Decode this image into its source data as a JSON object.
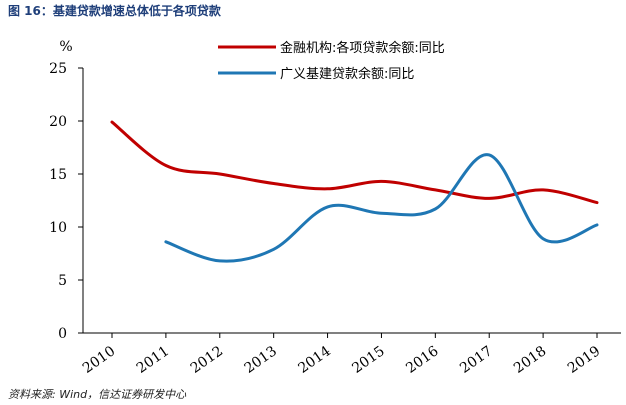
{
  "figure": {
    "title": "图 16：基建贷款增速总体低于各项贷款",
    "source": "资料来源: Wind，信达证券研发中心"
  },
  "chart_data": {
    "type": "line",
    "ylabel": "%",
    "xlabel": "",
    "ylim": [
      0,
      25
    ],
    "yticks": [
      "0",
      "5",
      "10",
      "15",
      "20",
      "25"
    ],
    "categories": [
      "2010",
      "2011",
      "2012",
      "2013",
      "2014",
      "2015",
      "2016",
      "2017",
      "2018",
      "2019"
    ],
    "grid": false,
    "legend_position": "top",
    "series": [
      {
        "name": "金融机构:各项贷款余额:同比",
        "color": "#c00000",
        "values": [
          19.9,
          15.8,
          15.0,
          14.1,
          13.6,
          14.3,
          13.5,
          12.7,
          13.5,
          12.3
        ]
      },
      {
        "name": "广义基建贷款余额:同比",
        "color": "#1f77b4",
        "values": [
          null,
          8.6,
          6.8,
          7.9,
          11.9,
          11.3,
          11.7,
          16.8,
          8.9,
          10.2
        ]
      }
    ]
  }
}
